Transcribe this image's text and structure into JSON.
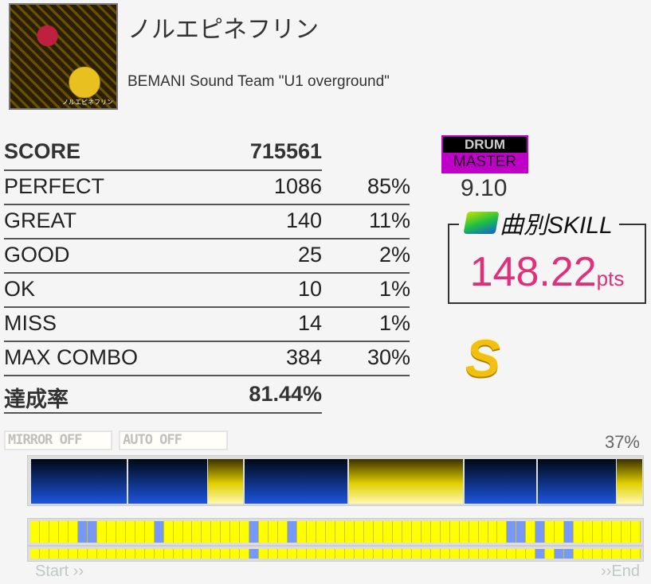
{
  "song": {
    "title": "ノルエピネフリン",
    "artist": "BEMANI Sound Team \"U1 overground\"",
    "jacket_text": "ノルエピネフリン"
  },
  "results": {
    "score_label": "SCORE",
    "score": "715561",
    "rows": [
      {
        "label": "PERFECT",
        "count": "1086",
        "percent": "85%"
      },
      {
        "label": "GREAT",
        "count": "140",
        "percent": "11%"
      },
      {
        "label": "GOOD",
        "count": "25",
        "percent": "2%"
      },
      {
        "label": "OK",
        "count": "10",
        "percent": "1%"
      },
      {
        "label": "MISS",
        "count": "14",
        "percent": "1%"
      },
      {
        "label": "MAX COMBO",
        "count": "384",
        "percent": "30%"
      }
    ],
    "achievement_label": "達成率",
    "achievement": "81.44%"
  },
  "difficulty": {
    "instrument": "DRUM",
    "level_name": "MASTER",
    "level": "9.10",
    "color": "#c000c8"
  },
  "skill": {
    "label": "曲別SKILL",
    "value": "148.22",
    "unit": "pts",
    "color": "#e0307a"
  },
  "rank": "S",
  "options": {
    "mirror": "MIRROR OFF",
    "auto": "AUTO OFF"
  },
  "progress": {
    "percent": "37%",
    "start": "Start ››",
    "end": "››End"
  },
  "sections": [
    "blue",
    "blue",
    "yellow",
    "blue",
    "yellow",
    "blue",
    "blue",
    "yellow"
  ],
  "graph": {
    "cells": 64,
    "row1_blue": [
      5,
      6,
      13,
      23,
      27,
      50,
      51,
      53,
      56
    ],
    "row2_blue": [
      23,
      53,
      55,
      56
    ],
    "colors": {
      "full": "#ffff00",
      "miss": "#7898f8"
    }
  }
}
